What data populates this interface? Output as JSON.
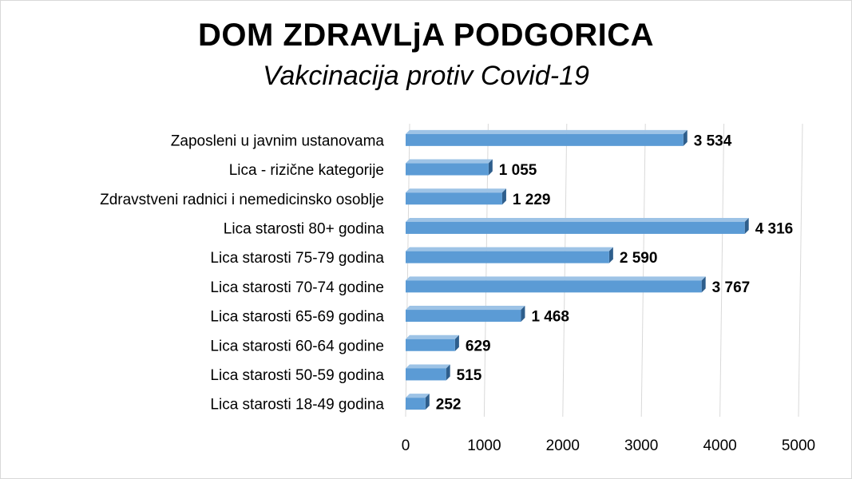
{
  "chart_data": {
    "type": "bar",
    "orientation": "horizontal",
    "title": "DOM  ZDRAVLjA  PODGORICA",
    "subtitle": "Vakcinacija  protiv  Covid-19",
    "categories": [
      "Zaposleni u javnim ustanovama",
      "Lica - rizične kategorije",
      "Zdravstveni radnici i nemedicinsko osoblje",
      "Lica starosti 80+ godina",
      "Lica starosti 75-79 godina",
      "Lica starosti 70-74 godine",
      "Lica starosti 65-69 godina",
      "Lica starosti 60-64 godine",
      "Lica starosti 50-59 godina",
      "Lica starosti 18-49 godina"
    ],
    "values": [
      3534,
      1055,
      1229,
      4316,
      2590,
      3767,
      1468,
      629,
      515,
      252
    ],
    "data_labels": [
      "3 534",
      "1 055",
      "1 229",
      "4 316",
      "2 590",
      "3 767",
      "1 468",
      "629",
      "515",
      "252"
    ],
    "xlim": [
      0,
      5000
    ],
    "x_ticks": [
      "0",
      "1000",
      "2000",
      "3000",
      "4000",
      "5000"
    ],
    "grid": true,
    "legend": "none",
    "colors": {
      "bar_front": "#5b9bd5",
      "bar_top": "#9dc3e6",
      "bar_side": "#2e5e8c",
      "grid": "#d9d9d9"
    }
  }
}
